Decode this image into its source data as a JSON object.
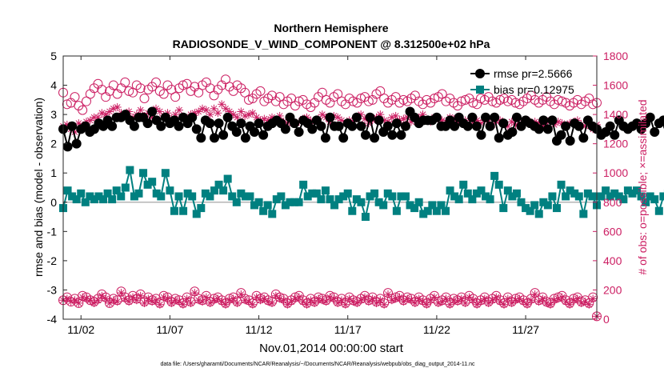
{
  "colors": {
    "rmse": "#000000",
    "bias": "#008080",
    "obs": "#cc1f63",
    "zero_line": "#b4b4b4",
    "axis": "#262626"
  },
  "chart_data": {
    "type": "line",
    "title": "Northern Hemisphere",
    "subtitle": "RADIOSONDE_V_WIND_COMPONENT @ 8.312500e+02 hPa",
    "xlabel": "Nov.01,2014 00:00:00 start",
    "ylabel_left": "rmse and bias (model - observation)",
    "ylabel_right": "# of obs: o=possible; ×=assimilated",
    "footnote": "data file: /Users/gharamti/Documents/NCAR/Reanalysis/~/Documents/NCAR/Reanalysis/webpub/obs_diag_output_2014-11.nc",
    "xlim": [
      1,
      31
    ],
    "ylim_left": [
      -4,
      5
    ],
    "ylim_right": [
      0,
      1800
    ],
    "x_ticks": [
      2,
      7,
      12,
      17,
      22,
      27
    ],
    "x_tick_labels": [
      "11/02",
      "11/07",
      "11/12",
      "11/17",
      "11/22",
      "11/27"
    ],
    "y_left_ticks": [
      "-4",
      "-3",
      "-2",
      "-1",
      "0",
      "1",
      "2",
      "3",
      "4",
      "5"
    ],
    "y_right_ticks": [
      "0",
      "200",
      "400",
      "600",
      "800",
      "1000",
      "1200",
      "1400",
      "1600",
      "1800"
    ],
    "legend": [
      "rmse pr=2.5666",
      "bias pr=0.12975"
    ],
    "legend_position": "top-right",
    "x_start": 1.0,
    "x_step": 0.25,
    "series": [
      {
        "name": "rmse pr=2.5666",
        "axis": "left",
        "values": [
          2.5,
          1.9,
          2.6,
          2.0,
          2.5,
          2.6,
          2.4,
          2.5,
          2.7,
          2.6,
          2.8,
          2.6,
          2.9,
          2.9,
          3.0,
          2.8,
          2.6,
          2.9,
          2.9,
          2.7,
          3.1,
          2.8,
          2.6,
          2.9,
          2.7,
          2.8,
          2.6,
          2.9,
          2.7,
          2.9,
          2.5,
          2.2,
          2.8,
          2.7,
          2.2,
          2.7,
          2.3,
          2.9,
          2.6,
          2.4,
          2.7,
          2.2,
          2.6,
          2.4,
          2.7,
          2.3,
          2.6,
          2.7,
          2.8,
          2.7,
          2.5,
          2.9,
          2.7,
          2.4,
          2.8,
          2.7,
          2.5,
          2.8,
          2.6,
          2.2,
          2.9,
          2.6,
          2.6,
          2.2,
          2.7,
          2.6,
          2.9,
          2.6,
          2.3,
          2.9,
          2.2,
          2.8,
          2.4,
          2.6,
          2.3,
          2.7,
          2.3,
          2.6,
          3.1,
          2.9,
          2.7,
          2.8,
          2.8,
          2.8,
          2.9,
          2.6,
          2.6,
          2.8,
          2.6,
          2.9,
          2.7,
          2.6,
          2.9,
          2.6,
          2.3,
          2.9,
          2.6,
          2.9,
          2.2,
          2.7,
          2.3,
          2.4,
          2.9,
          2.6,
          2.8,
          2.7,
          2.6,
          2.5,
          2.8,
          2.5,
          2.8,
          2.1,
          2.3,
          2.6,
          2.1,
          2.7,
          2.6,
          2.2,
          2.8,
          2.6,
          2.5,
          2.3,
          2.4,
          2.6,
          2.3,
          2.8,
          2.6,
          2.5,
          2.6,
          2.7,
          2.5,
          2.7,
          2.9,
          2.4,
          2.7,
          2.8,
          2.6,
          2.3,
          2.8,
          2.4,
          2.6,
          2.8,
          2.6,
          2.7,
          2.4,
          2.6,
          2.7,
          2.9,
          2.7,
          2.5,
          2.3,
          2.5,
          2.7,
          2.4,
          2.9,
          2.2,
          2.6,
          2.7,
          2.6,
          2.6,
          2.3,
          2.7,
          2.6,
          2.0,
          2.8,
          2.8,
          2.6,
          2.7,
          2.9,
          2.5,
          2.9,
          2.8,
          2.2,
          2.7,
          2.3,
          2.6,
          2.8,
          2.2,
          2.7,
          2.6,
          2.8,
          2.4,
          2.7,
          2.4,
          2.5
        ]
      },
      {
        "name": "bias pr=0.12975",
        "axis": "left",
        "values": [
          -0.2,
          0.4,
          0.2,
          0.1,
          0.3,
          0.0,
          0.2,
          0.1,
          0.2,
          0.1,
          0.3,
          0.1,
          0.4,
          0.2,
          0.5,
          1.1,
          0.2,
          0.3,
          1.0,
          0.6,
          0.7,
          0.3,
          0.2,
          1.0,
          0.4,
          -0.3,
          0.2,
          -0.3,
          0.3,
          0.2,
          -0.4,
          -0.2,
          0.3,
          0.2,
          0.4,
          0.6,
          0.4,
          0.8,
          0.2,
          0.0,
          0.3,
          0.2,
          0.2,
          -0.1,
          0.0,
          -0.3,
          -0.1,
          -0.4,
          0.1,
          0.2,
          -0.1,
          0.0,
          0.0,
          0.0,
          0.6,
          0.2,
          0.3,
          0.3,
          0.1,
          0.4,
          0.1,
          -0.1,
          0.1,
          0.2,
          0.3,
          -0.3,
          0.1,
          0.0,
          -0.5,
          0.2,
          0.3,
          0.0,
          -0.1,
          0.3,
          0.2,
          -0.3,
          0.2,
          0.2,
          -0.1,
          -0.2,
          0.0,
          -0.4,
          -0.3,
          -0.1,
          -0.3,
          -0.1,
          -0.3,
          0.4,
          0.2,
          0.1,
          0.6,
          0.3,
          0.1,
          0.3,
          0.4,
          0.2,
          0.1,
          0.9,
          0.6,
          -0.2,
          0.4,
          0.2,
          0.3,
          0.0,
          -0.2,
          -0.3,
          -0.1,
          -0.4,
          0.0,
          -0.1,
          0.2,
          -0.2,
          0.6,
          0.2,
          0.4,
          0.3,
          0.2,
          -0.4,
          0.3,
          0.2,
          -0.1,
          0.2,
          0.4,
          0.2,
          0.3,
          0.2,
          0.1,
          0.4,
          0.3,
          0.4,
          0.2,
          0.0,
          0.2,
          0.1,
          -0.3,
          0.2,
          0.3,
          0.0,
          0.2,
          0.1,
          0.4,
          0.2,
          0.3,
          0.0,
          -0.2,
          0.2,
          0.4,
          0.3,
          -0.4,
          0.2,
          0.1,
          0.3,
          0.1,
          0.2,
          -0.3,
          0.1,
          -0.2,
          0.0,
          0.2,
          -0.1,
          -0.3,
          0.2,
          0.1,
          0.3,
          0.5,
          0.2,
          0.7,
          0.3,
          0.1,
          0.0,
          0.2,
          0.3,
          -0.2,
          0.3,
          0.1,
          0.2,
          0.0,
          -0.1,
          -0.4,
          -0.3
        ]
      },
      {
        "name": "# obs possible",
        "axis": "right",
        "marker": "open circle",
        "values": [
          1550,
          1470,
          1480,
          1520,
          1460,
          1430,
          1490,
          1540,
          1580,
          1610,
          1570,
          1520,
          1560,
          1600,
          1540,
          1580,
          1620,
          1560,
          1550,
          1600,
          1580,
          1510,
          1570,
          1590,
          1620,
          1560,
          1540,
          1600,
          1570,
          1520,
          1580,
          1600,
          1610,
          1560,
          1590,
          1550,
          1600,
          1620,
          1580,
          1530,
          1570,
          1600,
          1640,
          1590,
          1560,
          1600,
          1580,
          1550,
          1500,
          1510,
          1540,
          1560,
          1490,
          1510,
          1530,
          1490,
          1520,
          1470,
          1490,
          1510,
          1460,
          1490,
          1500,
          1470,
          1450,
          1480,
          1520,
          1550,
          1500,
          1480,
          1520,
          1540,
          1490,
          1470,
          1510,
          1490,
          1480,
          1510,
          1520,
          1490,
          1500,
          1540,
          1560,
          1510,
          1480,
          1500,
          1520,
          1480,
          1500,
          1490,
          1510,
          1530,
          1490,
          1470,
          1500,
          1480,
          1510,
          1520,
          1540,
          1490,
          1510,
          1480,
          1460,
          1490,
          1500,
          1510,
          1480,
          1470,
          1510,
          1500,
          1520,
          1490,
          1480,
          1500,
          1510,
          1490,
          1500,
          1480,
          1470,
          1490,
          1510,
          1530,
          1500,
          1480,
          1500,
          1520,
          1490,
          1470,
          1500,
          1490,
          1480,
          1460,
          1480,
          1500,
          1470,
          1490,
          1510,
          1470,
          1480
        ]
      },
      {
        "name": "# obs assimilated",
        "axis": "right",
        "marker": "asterisk",
        "values": [
          1320,
          1330,
          1300,
          1280,
          1340,
          1320,
          1350,
          1360,
          1380,
          1380,
          1410,
          1400,
          1420,
          1440,
          1450,
          1410,
          1400,
          1420,
          1380,
          1400,
          1430,
          1390,
          1410,
          1380,
          1440,
          1420,
          1390,
          1410,
          1370,
          1400,
          1430,
          1380,
          1360,
          1400,
          1410,
          1420,
          1440,
          1430,
          1400,
          1440,
          1410,
          1470,
          1440,
          1420,
          1400,
          1380,
          1420,
          1390,
          1400,
          1410,
          1380,
          1360,
          1370,
          1360,
          1380,
          1360,
          1390,
          1350,
          1340,
          1360,
          1340,
          1350,
          1370,
          1380,
          1360,
          1350,
          1370,
          1400,
          1380,
          1350,
          1390,
          1380,
          1360,
          1340,
          1360,
          1350,
          1380,
          1400,
          1370,
          1340,
          1360,
          1380,
          1400,
          1360,
          1350,
          1380,
          1390,
          1360,
          1370,
          1380,
          1350,
          1370,
          1380,
          1400,
          1360,
          1350,
          1380,
          1370,
          1360,
          1350,
          1380,
          1370,
          1340,
          1350,
          1360,
          1340,
          1350,
          1360,
          1340,
          1360,
          1350,
          1330,
          1350,
          1360,
          1340,
          1320,
          1350,
          1330,
          1320,
          1340,
          1360,
          1330,
          1350,
          1340,
          1320,
          1340,
          1360,
          1330,
          1350,
          1340,
          1320,
          1340,
          1350,
          1360,
          1330,
          1320,
          1340,
          1300,
          1330
        ]
      },
      {
        "name": "# obs possible (low level)",
        "axis": "right",
        "marker": "open circle",
        "values": [
          130,
          150,
          120,
          140,
          110,
          160,
          150,
          130,
          120,
          140,
          170,
          150,
          110,
          140,
          130,
          190,
          150,
          130,
          160,
          140,
          170,
          120,
          150,
          130,
          140,
          110,
          160,
          150,
          120,
          140,
          130,
          110,
          150,
          120,
          190,
          140,
          130,
          160,
          120,
          140,
          150,
          130,
          110,
          140,
          150,
          120,
          180,
          140,
          130,
          110,
          160,
          140,
          150,
          130,
          120,
          170,
          150,
          140,
          110,
          130,
          150,
          160,
          130,
          110,
          140,
          120,
          150,
          140,
          130,
          160,
          150,
          120,
          140,
          110,
          150,
          130,
          120,
          140,
          160,
          130,
          150,
          120,
          140,
          110,
          180,
          140,
          150,
          160,
          130,
          150,
          140,
          120,
          150,
          130,
          110,
          140,
          160,
          120,
          130,
          150,
          110,
          140,
          130,
          150,
          120,
          160,
          140,
          110,
          130,
          150,
          120,
          140,
          160,
          130,
          110,
          150,
          120,
          140,
          150,
          130,
          110,
          140,
          180,
          130,
          150,
          120,
          110,
          140,
          150,
          160,
          130,
          110,
          140,
          150,
          120,
          130,
          110,
          150,
          20
        ]
      },
      {
        "name": "# obs assimilated (low level)",
        "axis": "right",
        "marker": "asterisk",
        "values": [
          130,
          140,
          120,
          130,
          110,
          150,
          140,
          130,
          110,
          130,
          160,
          140,
          110,
          130,
          120,
          180,
          140,
          120,
          150,
          130,
          160,
          110,
          140,
          120,
          130,
          100,
          150,
          140,
          110,
          130,
          120,
          100,
          140,
          110,
          180,
          130,
          120,
          150,
          110,
          130,
          140,
          120,
          100,
          130,
          140,
          110,
          170,
          130,
          120,
          100,
          150,
          130,
          140,
          120,
          110,
          160,
          140,
          130,
          100,
          120,
          140,
          150,
          120,
          100,
          130,
          110,
          140,
          130,
          120,
          150,
          140,
          110,
          130,
          100,
          140,
          120,
          110,
          130,
          150,
          120,
          140,
          110,
          130,
          100,
          170,
          130,
          140,
          150,
          120,
          140,
          130,
          110,
          140,
          120,
          100,
          130,
          150,
          110,
          120,
          140,
          100,
          130,
          120,
          140,
          110,
          150,
          130,
          100,
          120,
          140,
          110,
          130,
          150,
          120,
          100,
          140,
          110,
          130,
          140,
          120,
          100,
          130,
          170,
          120,
          140,
          110,
          100,
          130,
          140,
          150,
          120,
          100,
          130,
          140,
          110,
          120,
          100,
          140,
          20
        ]
      }
    ]
  }
}
